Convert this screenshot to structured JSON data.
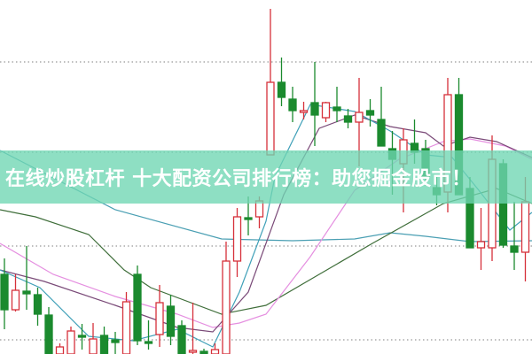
{
  "banner": {
    "title": "在线炒股杠杆 十大配资公司排行榜：助您掘金股市！"
  },
  "chart_data": {
    "type": "candlestick",
    "title": "",
    "xlabel": "",
    "ylabel": "",
    "ylim": [
      0,
      100
    ],
    "grid": "horizontal dotted",
    "gridlines": [
      82.5,
      57,
      30.5,
      4
    ],
    "colors": {
      "up": "#d6303a",
      "down": "#1b8a2e",
      "grid": "#999999",
      "banner": "#6ed6b2"
    },
    "candles": [
      [
        22.5,
        12.5,
        27,
        7
      ],
      [
        12.5,
        18,
        22.5,
        12
      ],
      [
        17.75,
        17,
        30.5,
        12.5
      ],
      [
        16.75,
        11.25,
        18.75,
        8
      ],
      [
        11,
        0,
        13.25,
        0
      ],
      [
        0,
        2,
        3,
        0
      ],
      [
        0,
        6.5,
        7.75,
        0
      ],
      [
        5.25,
        4.75,
        8.5,
        1.25
      ],
      [
        0,
        4.25,
        8.75,
        0
      ],
      [
        5.25,
        0,
        7.75,
        0
      ],
      [
        4,
        3.25,
        6.25,
        0
      ],
      [
        0,
        14.75,
        17.5,
        0
      ],
      [
        22.5,
        3.75,
        25,
        2.5
      ],
      [
        3.5,
        3,
        9.5,
        1.25
      ],
      [
        5.5,
        14.5,
        19.5,
        2
      ],
      [
        13.5,
        5,
        16.75,
        2.5
      ],
      [
        8,
        0,
        9.5,
        0
      ],
      [
        0.5,
        1,
        14.5,
        0
      ],
      [
        0.75,
        0,
        1.5,
        0
      ],
      [
        0,
        1.25,
        3,
        0
      ],
      [
        0,
        26.25,
        31.75,
        0
      ],
      [
        26.25,
        38.75,
        41.25,
        21.75
      ],
      [
        38.5,
        38,
        44.5,
        33.5
      ],
      [
        38.75,
        43.25,
        44.5,
        35.5
      ],
      [
        56.25,
        76.75,
        97.5,
        56.25
      ],
      [
        76.75,
        72.5,
        83.75,
        70
      ],
      [
        72,
        68.75,
        75.5,
        65.5
      ],
      [
        68.25,
        68.75,
        71.25,
        66.25
      ],
      [
        71,
        67.5,
        82.5,
        58.75
      ],
      [
        66.75,
        71,
        71.25,
        65.5
      ],
      [
        69.75,
        68.75,
        75.5,
        65.5
      ],
      [
        67.25,
        65.5,
        69.25,
        63.75
      ],
      [
        65.5,
        68.25,
        78,
        53
      ],
      [
        68.75,
        67.5,
        72,
        64.25
      ],
      [
        66.25,
        58.75,
        75.5,
        58.75
      ],
      [
        58,
        55,
        63,
        45
      ],
      [
        53.75,
        60.5,
        63.75,
        40
      ],
      [
        59.5,
        57,
        66.25,
        53.75
      ],
      [
        58,
        50,
        60.5,
        47.5
      ],
      [
        47,
        45,
        50,
        42
      ],
      [
        45.75,
        73.25,
        78,
        40
      ],
      [
        73.25,
        45,
        78,
        45
      ],
      [
        46.75,
        30,
        50,
        30
      ],
      [
        30,
        31.75,
        41.25,
        23.75
      ],
      [
        30,
        55,
        61.75,
        26.25
      ],
      [
        53.75,
        30.75,
        55,
        30
      ],
      [
        30.5,
        28.75,
        43,
        23.75
      ],
      [
        28.75,
        43,
        50,
        20.5
      ]
    ],
    "moving_averages": [
      {
        "color": "#4a9fb3",
        "points": [
          [
            -0.4,
            57.5
          ],
          [
            10,
            40.75
          ],
          [
            19.6,
            32.5
          ],
          [
            26,
            32
          ],
          [
            31.6,
            32.5
          ],
          [
            34.8,
            34.25
          ],
          [
            38,
            33.25
          ],
          [
            42,
            31.75
          ],
          [
            47.6,
            32
          ]
        ]
      },
      {
        "color": "#3f6e3a",
        "points": [
          [
            -0.4,
            40.75
          ],
          [
            2.8,
            38.75
          ],
          [
            7.6,
            33.75
          ],
          [
            10.8,
            23.75
          ],
          [
            13.2,
            18.75
          ],
          [
            19.6,
            11.25
          ],
          [
            23.6,
            13.75
          ],
          [
            28.4,
            22.5
          ],
          [
            33.2,
            31.25
          ],
          [
            39.6,
            42.5
          ],
          [
            44.4,
            46.75
          ],
          [
            47.6,
            42.5
          ]
        ]
      },
      {
        "color": "#e58fe0",
        "points": [
          [
            -0.4,
            31.25
          ],
          [
            4.4,
            22.5
          ],
          [
            10,
            16.25
          ],
          [
            15.6,
            11.25
          ],
          [
            18.8,
            7.5
          ],
          [
            21.2,
            8.75
          ],
          [
            23.6,
            11.25
          ],
          [
            27.6,
            27.5
          ],
          [
            31.6,
            46.25
          ],
          [
            35.6,
            55
          ],
          [
            39.6,
            60
          ],
          [
            42,
            60.75
          ],
          [
            45.2,
            58.75
          ],
          [
            47.6,
            55
          ]
        ]
      },
      {
        "color": "#7a4a78",
        "points": [
          [
            -0.4,
            23.75
          ],
          [
            3.6,
            20.5
          ],
          [
            10,
            13.75
          ],
          [
            15.6,
            7.5
          ],
          [
            18.8,
            6.25
          ],
          [
            22,
            17.5
          ],
          [
            25.2,
            45
          ],
          [
            28.4,
            63.75
          ],
          [
            31.6,
            67.5
          ],
          [
            34.8,
            64.25
          ],
          [
            38,
            62.5
          ],
          [
            39.6,
            58.75
          ],
          [
            42,
            61.25
          ],
          [
            44.4,
            60
          ],
          [
            47.6,
            55.5
          ]
        ]
      },
      {
        "color": "#3fa0b8",
        "points": [
          [
            -0.4,
            23.75
          ],
          [
            3.2,
            18.75
          ],
          [
            7.6,
            5
          ],
          [
            11.6,
            3.75
          ],
          [
            15.6,
            7
          ],
          [
            18.8,
            2
          ],
          [
            21.2,
            17.5
          ],
          [
            23.6,
            37.5
          ],
          [
            24.4,
            50
          ],
          [
            27.6,
            70.5
          ],
          [
            31.6,
            68.5
          ],
          [
            34.8,
            63
          ],
          [
            38,
            56.25
          ],
          [
            40.4,
            55.5
          ],
          [
            42.8,
            46.25
          ],
          [
            45.6,
            35
          ],
          [
            47.6,
            40
          ]
        ]
      }
    ]
  }
}
